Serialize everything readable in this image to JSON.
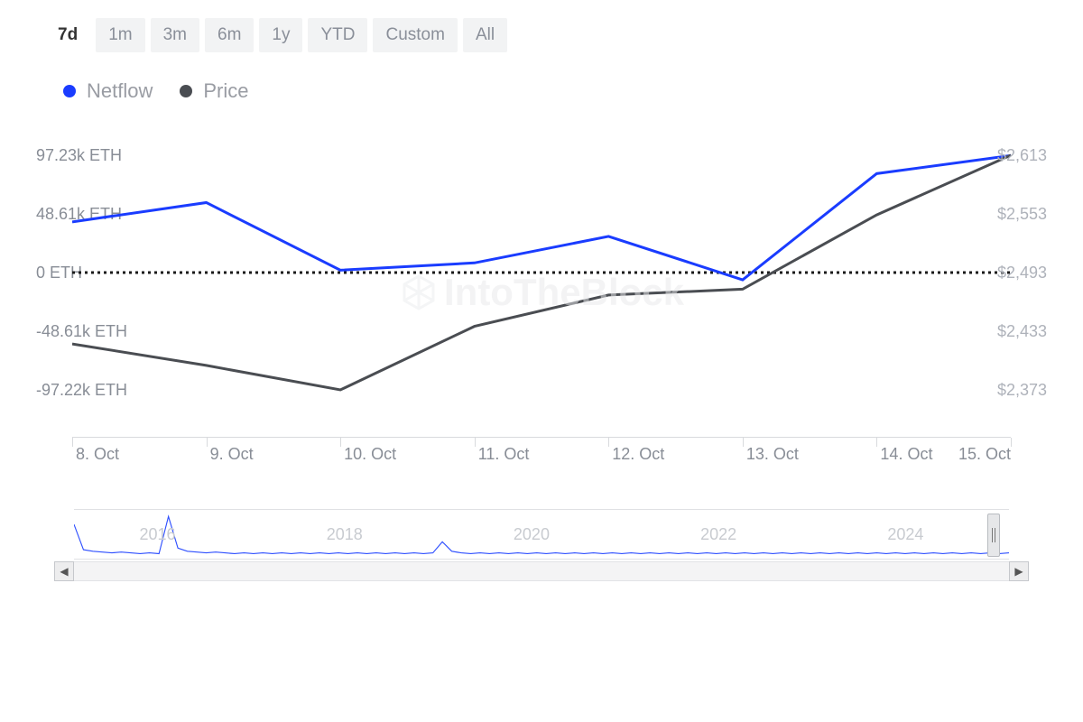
{
  "tabs": {
    "items": [
      "7d",
      "1m",
      "3m",
      "6m",
      "1y",
      "YTD",
      "Custom",
      "All"
    ],
    "active_index": 0,
    "active_bg": "#ffffff",
    "inactive_bg": "#f2f3f4",
    "active_color": "#333333",
    "inactive_color": "#8a8f99"
  },
  "legend": {
    "series": [
      {
        "label": "Netflow",
        "color": "#1a3cff"
      },
      {
        "label": "Price",
        "color": "#4a4d52"
      }
    ],
    "label_color": "#999ca3"
  },
  "chart": {
    "type": "line",
    "background_color": "#ffffff",
    "watermark_text": "IntoTheBlock",
    "watermark_color": "#e8e9eb",
    "x_categories": [
      "8. Oct",
      "9. Oct",
      "10. Oct",
      "11. Oct",
      "12. Oct",
      "13. Oct",
      "14. Oct",
      "15. Oct"
    ],
    "x_label_color": "#888d96",
    "x_axis_color": "#d8dadd",
    "y_left": {
      "labels": [
        "97.23k ETH",
        "48.61k ETH",
        "0 ETH",
        "-48.61k ETH",
        "-97.22k ETH"
      ],
      "values": [
        97.23,
        48.61,
        0,
        -48.61,
        -97.22
      ],
      "min": -97.22,
      "max": 97.23,
      "color": "#888d96"
    },
    "y_right": {
      "labels": [
        "$2,613",
        "$2,553",
        "$2,493",
        "$2,433",
        "$2,373"
      ],
      "values": [
        2613,
        2553,
        2493,
        2433,
        2373
      ],
      "min": 2373,
      "max": 2613,
      "color": "#aeb2ba"
    },
    "zero_line": {
      "color": "#1a1a1a",
      "dash": "3,4",
      "width": 3
    },
    "series": {
      "netflow": {
        "axis": "left",
        "color": "#1a3cff",
        "width": 3,
        "values": [
          42,
          58,
          2,
          8,
          30,
          -6,
          82,
          97
        ]
      },
      "price": {
        "axis": "right",
        "color": "#4a4d52",
        "width": 3,
        "values": [
          2420,
          2398,
          2373,
          2438,
          2470,
          2476,
          2552,
          2613
        ]
      }
    }
  },
  "navigator": {
    "years": [
      "2016",
      "2018",
      "2020",
      "2022",
      "2024"
    ],
    "line_color": "#2e4fff",
    "year_color": "#c8cbd0",
    "sparkline": [
      40,
      8,
      6,
      5,
      4,
      5,
      4,
      3,
      4,
      3,
      50,
      10,
      6,
      5,
      4,
      5,
      4,
      3,
      4,
      3,
      4,
      3,
      4,
      3,
      4,
      3,
      4,
      3,
      4,
      3,
      4,
      3,
      4,
      3,
      4,
      3,
      4,
      3,
      4,
      18,
      6,
      4,
      3,
      4,
      3,
      4,
      3,
      4,
      3,
      4,
      3,
      4,
      3,
      4,
      3,
      4,
      3,
      4,
      3,
      4,
      3,
      4,
      3,
      4,
      3,
      4,
      3,
      4,
      3,
      4,
      3,
      4,
      3,
      4,
      3,
      4,
      3,
      4,
      3,
      4,
      3,
      4,
      3,
      4,
      3,
      4,
      3,
      4,
      3,
      4,
      3,
      4,
      3,
      4,
      3,
      4,
      3,
      4,
      3,
      4
    ],
    "spark_min": 0,
    "spark_max": 55
  },
  "scroll": {
    "left_glyph": "◀",
    "right_glyph": "▶"
  }
}
